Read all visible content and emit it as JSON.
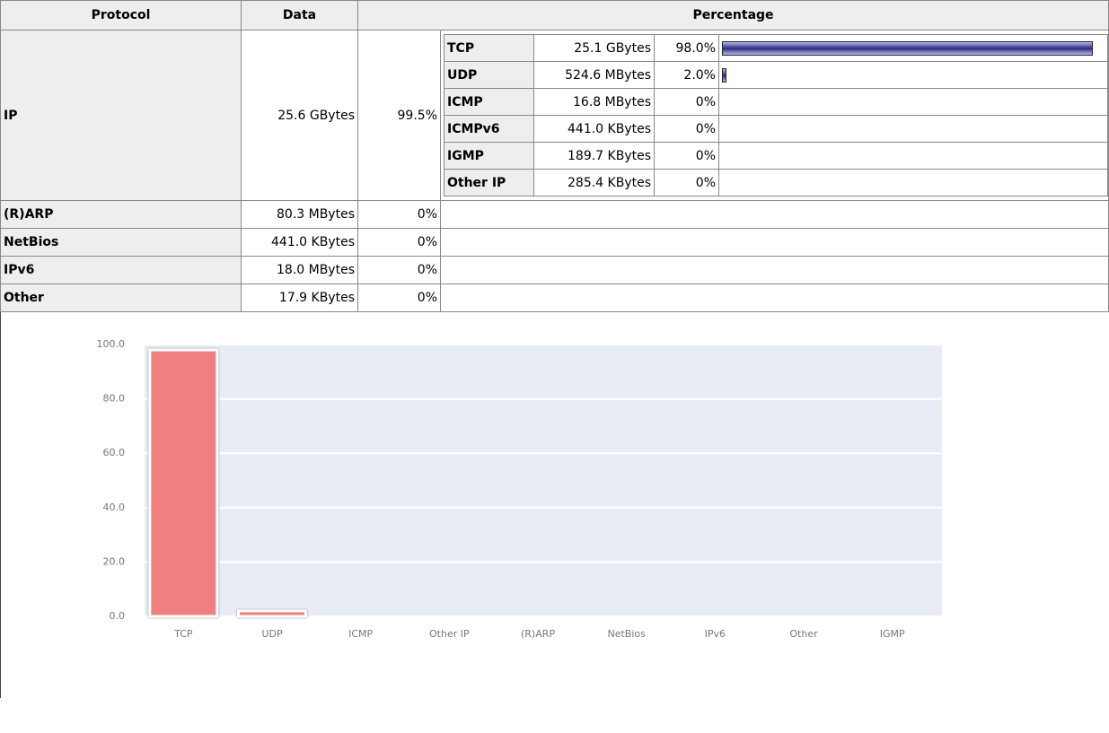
{
  "table": {
    "headers": [
      "Protocol",
      "Data",
      "Percentage"
    ],
    "ip": {
      "protocol": "IP",
      "data": "25.6 GBytes",
      "percent": "99.5%",
      "sub": [
        {
          "protocol": "TCP",
          "data": "25.1 GBytes",
          "percent": {
            "value": 98.0,
            "label": "98.0%"
          }
        },
        {
          "protocol": "UDP",
          "data": "524.6 MBytes",
          "percent": {
            "value": 2.0,
            "label": "2.0%"
          }
        },
        {
          "protocol": "ICMP",
          "data": "16.8 MBytes",
          "percent": {
            "value": 0,
            "label": "0%"
          }
        },
        {
          "protocol": "ICMPv6",
          "data": "441.0 KBytes",
          "percent": {
            "value": 0,
            "label": "0%"
          }
        },
        {
          "protocol": "IGMP",
          "data": "189.7 KBytes",
          "percent": {
            "value": 0,
            "label": "0%"
          }
        },
        {
          "protocol": "Other IP",
          "data": "285.4 KBytes",
          "percent": {
            "value": 0,
            "label": "0%"
          }
        }
      ]
    },
    "rows": [
      [
        "(R)ARP",
        "80.3 MBytes",
        "0%"
      ],
      [
        "NetBios",
        "441.0 KBytes",
        "0%"
      ],
      [
        "IPv6",
        "18.0 MBytes",
        "0%"
      ],
      [
        "Other",
        "17.9 KBytes",
        "0%"
      ]
    ]
  },
  "chart_data": {
    "type": "bar",
    "categories": [
      "TCP",
      "UDP",
      "ICMP",
      "Other IP",
      "(R)ARP",
      "NetBios",
      "IPv6",
      "Other",
      "IGMP"
    ],
    "values": [
      98,
      2,
      0,
      0,
      0,
      0,
      0,
      0,
      0
    ],
    "color": "#f08080",
    "ylim": [
      0,
      100
    ],
    "yticks": [
      {
        "value": 0,
        "label": "0.0"
      },
      {
        "value": 20,
        "label": "20.0"
      },
      {
        "value": 40,
        "label": "40.0"
      },
      {
        "value": 60,
        "label": "60.0"
      },
      {
        "value": 80,
        "label": "80.0"
      },
      {
        "value": 100,
        "label": "100.0"
      }
    ],
    "grid": true
  }
}
